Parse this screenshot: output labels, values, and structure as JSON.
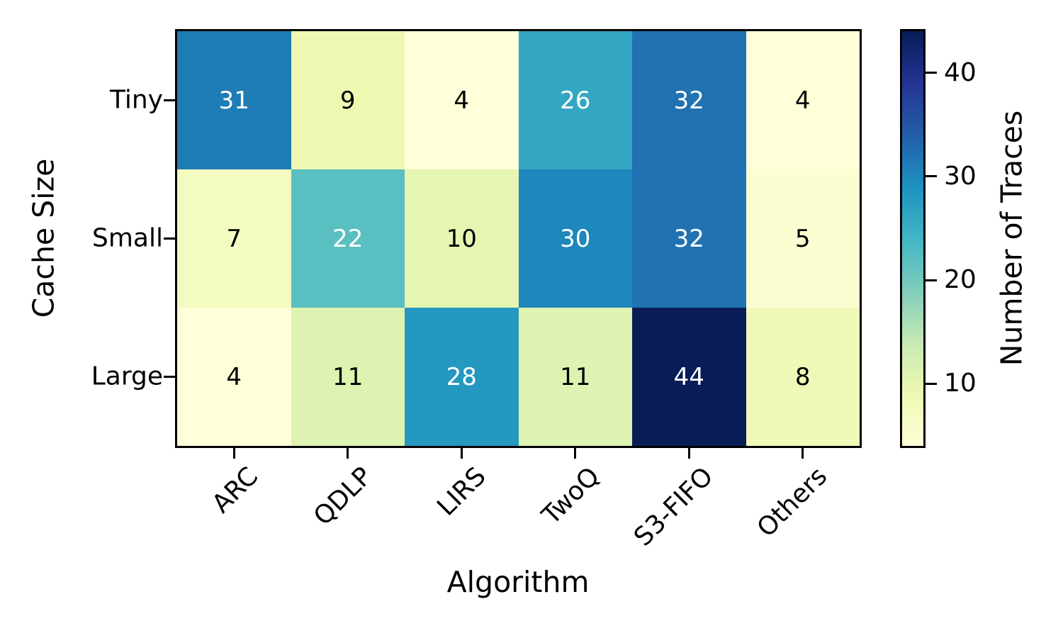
{
  "figure": {
    "background": "#ffffff",
    "axis_color": "#000000"
  },
  "chart_data": {
    "type": "heatmap",
    "title": "",
    "xlabel": "Algorithm",
    "ylabel": "Cache Size",
    "colorbar_label": "Number of Traces",
    "categories_x": [
      "ARC",
      "QDLP",
      "LIRS",
      "TwoQ",
      "S3-FIFO",
      "Others"
    ],
    "categories_y": [
      "Tiny",
      "Small",
      "Large"
    ],
    "values": [
      [
        31,
        9,
        4,
        26,
        32,
        4
      ],
      [
        7,
        22,
        10,
        30,
        32,
        5
      ],
      [
        4,
        11,
        28,
        11,
        44,
        8
      ]
    ],
    "vmin": 4,
    "vmax": 44,
    "colorbar_ticks": [
      40,
      30,
      20,
      10
    ],
    "colormap_name": "YlGnBu",
    "colormap_anchors": [
      "#ffffd9",
      "#edf8b1",
      "#c7e9b4",
      "#7fcdbb",
      "#41b6c4",
      "#1d91c0",
      "#225ea8",
      "#253494",
      "#081d58"
    ],
    "annotation_white_threshold": 20,
    "annotation_colors": {
      "light": "#ffffff",
      "dark": "#000000"
    },
    "grid": false,
    "legend_position": "right-colorbar"
  }
}
